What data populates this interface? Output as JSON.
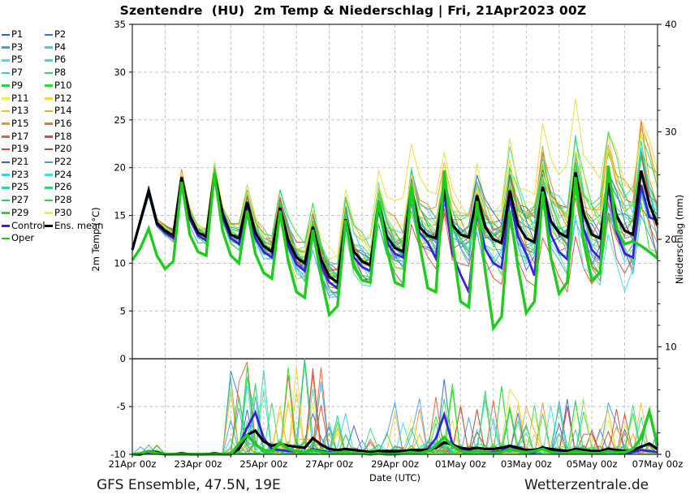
{
  "title": "Szentendre  (HU)  2m Temp & Niederschlag | Fri, 21Apr2023 00Z",
  "footer": {
    "left": "GFS Ensemble, 47.5N, 19E",
    "right": "Wetterzentrale.de"
  },
  "legend": {
    "columns": 2,
    "entries_order": [
      "P1",
      "P2",
      "P3",
      "P4",
      "P5",
      "P6",
      "P7",
      "P8",
      "P9",
      "P10",
      "P11",
      "P12",
      "P13",
      "P14",
      "P15",
      "P16",
      "P17",
      "P18",
      "P19",
      "P20",
      "P21",
      "P22",
      "P23",
      "P24",
      "P25",
      "P26",
      "P27",
      "P28",
      "P29",
      "P30",
      "Control",
      "Ens. mean",
      "Oper"
    ]
  },
  "chart_data": {
    "type": "line",
    "title": "Szentendre  (HU)  2m Temp & Niederschlag | Fri, 21Apr2023 00Z",
    "x_axis": {
      "label": "Date (UTC)",
      "days_total": 16,
      "hours_step": 6,
      "points_total": 65,
      "tick_labels": [
        "21Apr 00z",
        "23Apr 00z",
        "25Apr 00z",
        "27Apr 00z",
        "29Apr 00z",
        "01May 00z",
        "03May 00z",
        "05May 00z",
        "07May 00z"
      ],
      "tick_label_every_days": 2,
      "grid_every_days": 1
    },
    "y_left": {
      "label": "2m Temp (°C)",
      "min": -10,
      "max": 35,
      "ticks": [
        35,
        30,
        25,
        20,
        15,
        10,
        5,
        0,
        -5,
        -10
      ],
      "zero_line": 0,
      "grid": "dashed"
    },
    "y_right": {
      "label": "Niederschlag (mm)",
      "min": 0,
      "max": 40,
      "ticks": [
        0,
        10,
        20,
        30,
        40
      ],
      "minor_step": 2
    },
    "series": [
      {
        "name": "Ens. mean",
        "color": "#000000",
        "width": 3.2,
        "temp": [
          11.4,
          14.5,
          17.6,
          14.2,
          13.4,
          12.9,
          19.0,
          15.0,
          13.2,
          12.8,
          19.4,
          15.2,
          13.0,
          12.6,
          16.4,
          13.2,
          11.8,
          11.2,
          15.8,
          12.4,
          10.6,
          10.0,
          13.8,
          10.4,
          8.6,
          8.0,
          14.6,
          11.2,
          10.2,
          9.8,
          16.4,
          12.8,
          11.6,
          11.2,
          17.7,
          13.8,
          12.9,
          12.6,
          17.8,
          14.0,
          13.0,
          12.7,
          17.1,
          13.8,
          12.5,
          12.1,
          17.6,
          14.0,
          12.6,
          12.2,
          18.0,
          14.4,
          13.2,
          12.7,
          19.5,
          15.2,
          13.0,
          12.6,
          18.4,
          15.0,
          13.4,
          13.0,
          19.7,
          16.2,
          14.0
        ],
        "precip": [
          0,
          0,
          0.3,
          0.2,
          0,
          0,
          0.1,
          0,
          0,
          0,
          0.1,
          0,
          0,
          0.5,
          1.8,
          2.2,
          1.2,
          0.8,
          1.0,
          0.8,
          0.7,
          0.6,
          1.5,
          0.9,
          0.5,
          0.4,
          0.5,
          0.4,
          0.3,
          0.2,
          0.3,
          0.3,
          0.3,
          0.3,
          0.4,
          0.4,
          0.4,
          0.6,
          1.1,
          0.9,
          0.6,
          0.5,
          0.6,
          0.5,
          0.5,
          0.6,
          0.8,
          0.6,
          0.4,
          0.4,
          0.6,
          0.5,
          0.4,
          0.3,
          0.5,
          0.4,
          0.3,
          0.3,
          0.5,
          0.4,
          0.3,
          0.4,
          0.7,
          1.0,
          0.5
        ]
      },
      {
        "name": "Control",
        "color": "#3a20e0",
        "width": 2.8,
        "temp": [
          11.4,
          14.4,
          17.4,
          14.0,
          13.2,
          12.6,
          18.8,
          14.6,
          12.9,
          12.4,
          19.2,
          14.8,
          12.6,
          12.0,
          16.0,
          12.6,
          11.2,
          10.6,
          15.2,
          11.8,
          9.9,
          9.2,
          13.2,
          9.8,
          8.0,
          7.4,
          14.0,
          10.6,
          9.6,
          9.2,
          15.8,
          12.2,
          11.0,
          10.6,
          17.4,
          13.2,
          12.2,
          10.5,
          17.5,
          11.0,
          8.8,
          7.0,
          15.2,
          11.5,
          10.0,
          9.5,
          16.8,
          12.8,
          11.0,
          8.7,
          17.8,
          13.0,
          11.2,
          10.4,
          19.3,
          13.6,
          11.4,
          10.5,
          18.0,
          13.2,
          11.0,
          10.6,
          18.2,
          14.8,
          14.5
        ],
        "precip": [
          0,
          0,
          0.2,
          0.1,
          0,
          0,
          0,
          0,
          0,
          0,
          0,
          0,
          0,
          0.8,
          2.5,
          3.9,
          1.5,
          0.5,
          0.4,
          0.3,
          0.3,
          0.2,
          0.5,
          0.3,
          0.2,
          0.1,
          0.2,
          0.1,
          0.1,
          0,
          0.1,
          0.1,
          0.1,
          0.2,
          0.3,
          0.3,
          0.5,
          1.5,
          3.7,
          1.0,
          0.4,
          0.3,
          0.3,
          0.2,
          0.2,
          0.3,
          0.8,
          0.4,
          0.2,
          0.2,
          0.7,
          0.3,
          0.2,
          0.1,
          0.5,
          0.2,
          0.1,
          0.2,
          0.4,
          0.2,
          0.1,
          0.2,
          0.4,
          0.3,
          0.2
        ]
      },
      {
        "name": "Oper",
        "color": "#1ecc1e",
        "width": 3.4,
        "temp": [
          10.3,
          11.6,
          13.6,
          10.8,
          9.4,
          10.2,
          18.5,
          13.0,
          11.2,
          10.8,
          19.4,
          13.4,
          10.8,
          10.0,
          15.5,
          11.0,
          9.0,
          8.4,
          15.5,
          10.2,
          7.0,
          6.4,
          13.5,
          8.6,
          4.6,
          5.5,
          14.5,
          9.6,
          8.2,
          8.0,
          16.5,
          11.6,
          8.0,
          7.6,
          18.0,
          12.0,
          7.4,
          7.0,
          19.7,
          12.2,
          6.0,
          5.4,
          16.5,
          9.2,
          3.2,
          4.4,
          15.5,
          9.6,
          4.8,
          6.0,
          17.5,
          10.6,
          6.8,
          8.0,
          19.0,
          12.2,
          8.2,
          9.0,
          20.2,
          13.6,
          12.0,
          12.3,
          11.8,
          11.2,
          10.5
        ],
        "precip": [
          0,
          0.1,
          0.3,
          0.1,
          0,
          0,
          0,
          0,
          0,
          0,
          0,
          0,
          0,
          1.0,
          1.8,
          0.9,
          0.4,
          0.3,
          1.1,
          0.5,
          0.3,
          0.2,
          0.4,
          0.2,
          0.1,
          0.1,
          0.2,
          0.1,
          0.1,
          0,
          0.1,
          0,
          0,
          0.1,
          0.2,
          0.1,
          0.3,
          0.8,
          1.6,
          0.8,
          0.3,
          0.2,
          0.3,
          0.2,
          0.1,
          0.2,
          0.5,
          0.3,
          0.2,
          0.3,
          0.5,
          0.2,
          0.1,
          0.1,
          0.3,
          0.2,
          0.1,
          0.1,
          0.3,
          0.2,
          0.2,
          0.5,
          1.5,
          4.0,
          0.8
        ]
      }
    ],
    "members": {
      "names": [
        "P1",
        "P2",
        "P3",
        "P4",
        "P5",
        "P6",
        "P7",
        "P8",
        "P9",
        "P10",
        "P11",
        "P12",
        "P13",
        "P14",
        "P15",
        "P16",
        "P17",
        "P18",
        "P19",
        "P20",
        "P21",
        "P22",
        "P23",
        "P24",
        "P25",
        "P26",
        "P27",
        "P28",
        "P29",
        "P30"
      ],
      "colors": [
        "#3060d8",
        "#3078e0",
        "#38a0e8",
        "#40c8f0",
        "#38e0e8",
        "#38e0b0",
        "#30d890",
        "#2ed868",
        "#2ed044",
        "#28e028",
        "#f0f040",
        "#f0d830",
        "#f0c030",
        "#f0a830",
        "#f09030",
        "#e07828",
        "#e06030",
        "#e04830",
        "#cc4444",
        "#b04848",
        "#3060d8",
        "#38a0e8",
        "#40c8f0",
        "#38e0e8",
        "#30d890",
        "#2ed868",
        "#2ed044",
        "#28e028",
        "#20e020",
        "#f0f040"
      ],
      "synthesis": {
        "seed": 20230421,
        "walk_persistence": 0.78,
        "walk_step": 1.5,
        "spread_base": 0.3,
        "spread_growth": 2.6,
        "bias_range": 2.4,
        "bias_growth": 2.6,
        "hot_members": {
          "11": 1.2,
          "29": 1.6
        },
        "precip_envelope_per_day": [
          0.3,
          0.05,
          0.05,
          2.8,
          2.6,
          2.8,
          1.2,
          0.8,
          1.6,
          2.2,
          1.8,
          2.0,
          1.5,
          1.6,
          1.5,
          1.6,
          1.0
        ],
        "temp_clamp": [
          2.0,
          33.0
        ],
        "precip_clamp": [
          0,
          10.8
        ]
      }
    },
    "special_colors": {
      "control": "#3a20e0",
      "ens_mean": "#000000",
      "oper": "#1ecc1e"
    },
    "plot_style": {
      "grid_color": "#c4c4c4",
      "axis_color": "#222222",
      "background": "#ffffff"
    }
  }
}
